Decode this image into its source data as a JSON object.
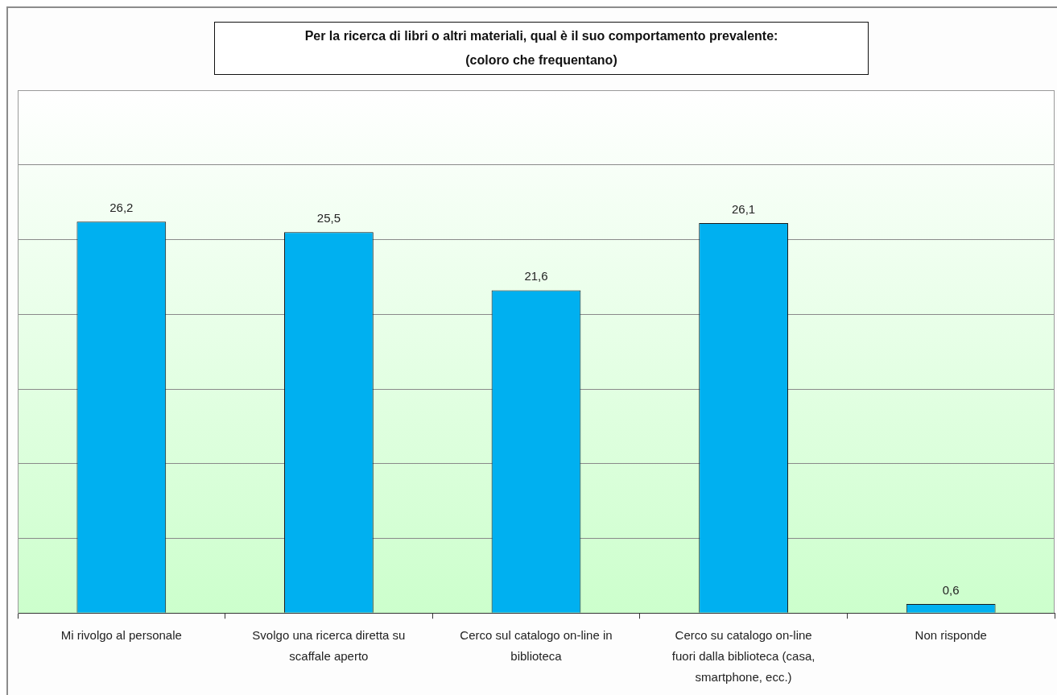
{
  "chart_data": {
    "type": "bar",
    "title": "Per la ricerca di libri o altri materiali, qual è il suo comportamento prevalente:",
    "subtitle": "(coloro che frequentano)",
    "categories": [
      "Mi rivolgo al personale",
      "Svolgo una ricerca diretta su scaffale aperto",
      "Cerco sul catalogo on-line in biblioteca",
      "Cerco su catalogo on-line fuori dalla biblioteca (casa, smartphone, ecc.)",
      "Non risponde"
    ],
    "values": [
      26.2,
      25.5,
      21.6,
      26.1,
      0.6
    ],
    "value_labels": [
      "26,2",
      "25,5",
      "21,6",
      "26,1",
      "0,6"
    ],
    "color": "#00b0f0",
    "ylim": [
      0,
      35
    ],
    "yticks": [
      {
        "value": 0,
        "label": null
      },
      {
        "value": 5,
        "label": null
      },
      {
        "value": 10,
        "label": null
      },
      {
        "value": 15,
        "label": null
      },
      {
        "value": 20,
        "label": null
      },
      {
        "value": 25,
        "label": null
      },
      {
        "value": 30,
        "label": null
      },
      {
        "value": 35,
        "label": null
      }
    ],
    "grid": "y",
    "tick_labels": "x"
  }
}
